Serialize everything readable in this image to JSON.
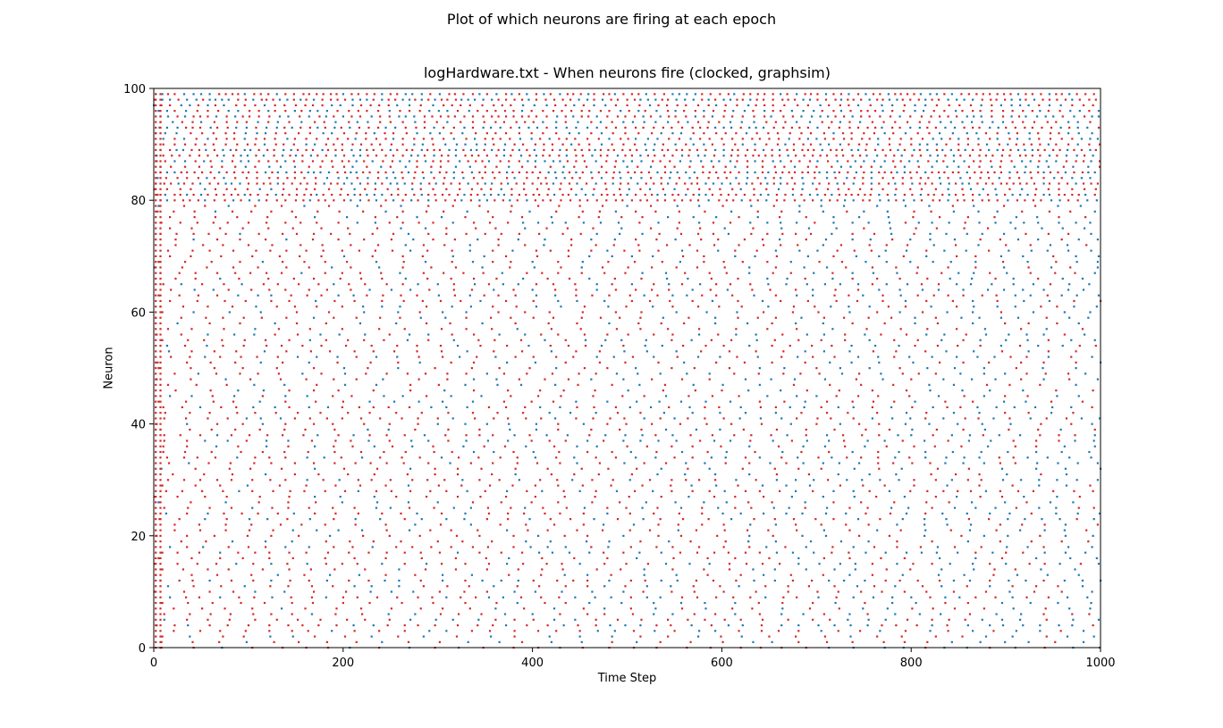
{
  "figure": {
    "suptitle": "Plot of which neurons are firing at each epoch"
  },
  "chart_data": {
    "type": "scatter",
    "title": "logHardware.txt - When neurons fire (clocked, graphsim)",
    "xlabel": "Time Step",
    "ylabel": "Neuron",
    "xlim": [
      0,
      1000
    ],
    "ylim": [
      0,
      100
    ],
    "xticks": [
      0,
      200,
      400,
      600,
      800,
      1000
    ],
    "yticks": [
      0,
      20,
      40,
      60,
      80,
      100
    ],
    "xtick_labels": [
      "0",
      "200",
      "400",
      "600",
      "800",
      "1000"
    ],
    "ytick_labels": [
      "0",
      "20",
      "40",
      "60",
      "80",
      "100"
    ],
    "grid": false,
    "legend": "none",
    "series_colors": {
      "hardware": "#1f77b4",
      "simulation": "#d62728"
    },
    "description_of_data": "",
    "series": [
      {
        "color": "#d62728",
        "model": {
          "neurons": 100,
          "timesteps": 1000,
          "upper_band_start": 80
        }
      },
      {
        "color": "#1f77b4",
        "model": {
          "neurons": 100,
          "timesteps": 1000,
          "upper_band_start": 80
        }
      }
    ]
  }
}
